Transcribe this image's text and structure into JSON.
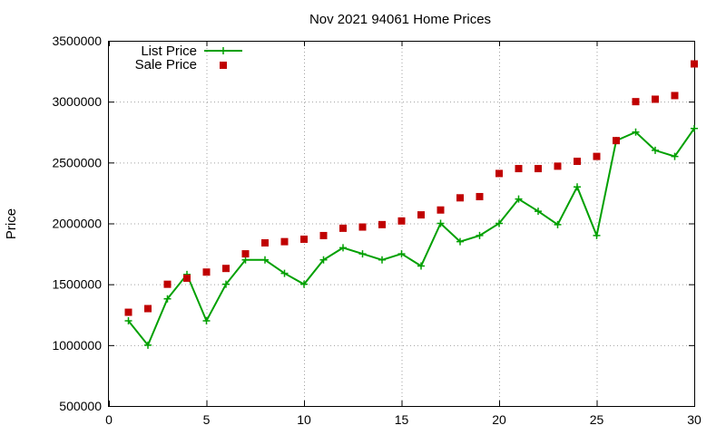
{
  "chart_data": {
    "type": "line",
    "title": "Nov 2021 94061 Home Prices",
    "xlabel": "",
    "ylabel": "Price",
    "xlim": [
      0,
      30
    ],
    "ylim": [
      500000,
      3500000
    ],
    "xticks": [
      0,
      5,
      10,
      15,
      20,
      25,
      30
    ],
    "yticks": [
      500000,
      1000000,
      1500000,
      2000000,
      2500000,
      3000000,
      3500000
    ],
    "grid": true,
    "legend_position": "top-left",
    "x": [
      1,
      2,
      3,
      4,
      5,
      6,
      7,
      8,
      9,
      10,
      11,
      12,
      13,
      14,
      15,
      16,
      17,
      18,
      19,
      20,
      21,
      22,
      23,
      24,
      25,
      26,
      27,
      28,
      29,
      30
    ],
    "series": [
      {
        "name": "List Price",
        "style": "line-plus",
        "color": "#00a000",
        "values": [
          1200000,
          1000000,
          1380000,
          1580000,
          1200000,
          1500000,
          1700000,
          1700000,
          1590000,
          1500000,
          1700000,
          1800000,
          1750000,
          1700000,
          1750000,
          1650000,
          2000000,
          1850000,
          1900000,
          2000000,
          2200000,
          2100000,
          1990000,
          2300000,
          1900000,
          2680000,
          2750000,
          2600000,
          2550000,
          2780000
        ]
      },
      {
        "name": "Sale Price",
        "style": "square",
        "color": "#c00000",
        "values": [
          1270000,
          1300000,
          1500000,
          1550000,
          1600000,
          1630000,
          1750000,
          1840000,
          1850000,
          1870000,
          1900000,
          1960000,
          1970000,
          1990000,
          2020000,
          2070000,
          2110000,
          2210000,
          2220000,
          2410000,
          2450000,
          2450000,
          2470000,
          2510000,
          2550000,
          2680000,
          3000000,
          3020000,
          3050000,
          3310000
        ]
      }
    ]
  }
}
